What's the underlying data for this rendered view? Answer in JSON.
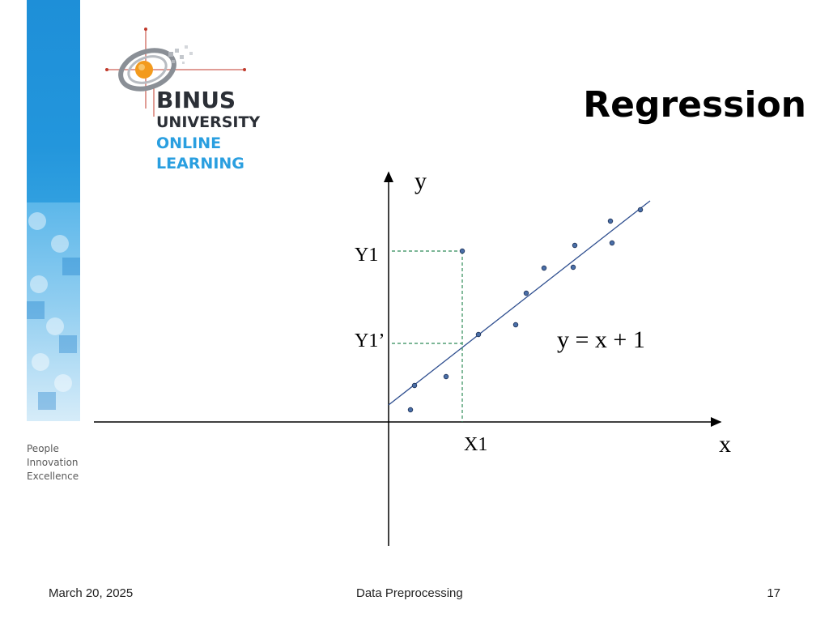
{
  "slide": {
    "title": "Regression",
    "tagline": [
      "People",
      "Innovation",
      "Excellence"
    ]
  },
  "logo": {
    "line1": "BINUS",
    "line2": "UNIVERSITY",
    "line3": "ONLINE",
    "line4": "LEARNING",
    "colors": {
      "dark": "#2b2f36",
      "blue": "#2a9fe0",
      "orange": "#f39a1d"
    }
  },
  "diagram": {
    "y_axis_label": "y",
    "x_axis_label": "x",
    "label_y1": "Y1",
    "label_y1_prime": "Y1’",
    "label_x1": "X1",
    "equation": "y = x + 1",
    "line_color": "#2e4e8f",
    "guide_color": "#2e8b57",
    "point_color": "#4a6fa8"
  },
  "footer": {
    "date": "March 20, 2025",
    "center": "Data Preprocessing",
    "page": "17"
  }
}
